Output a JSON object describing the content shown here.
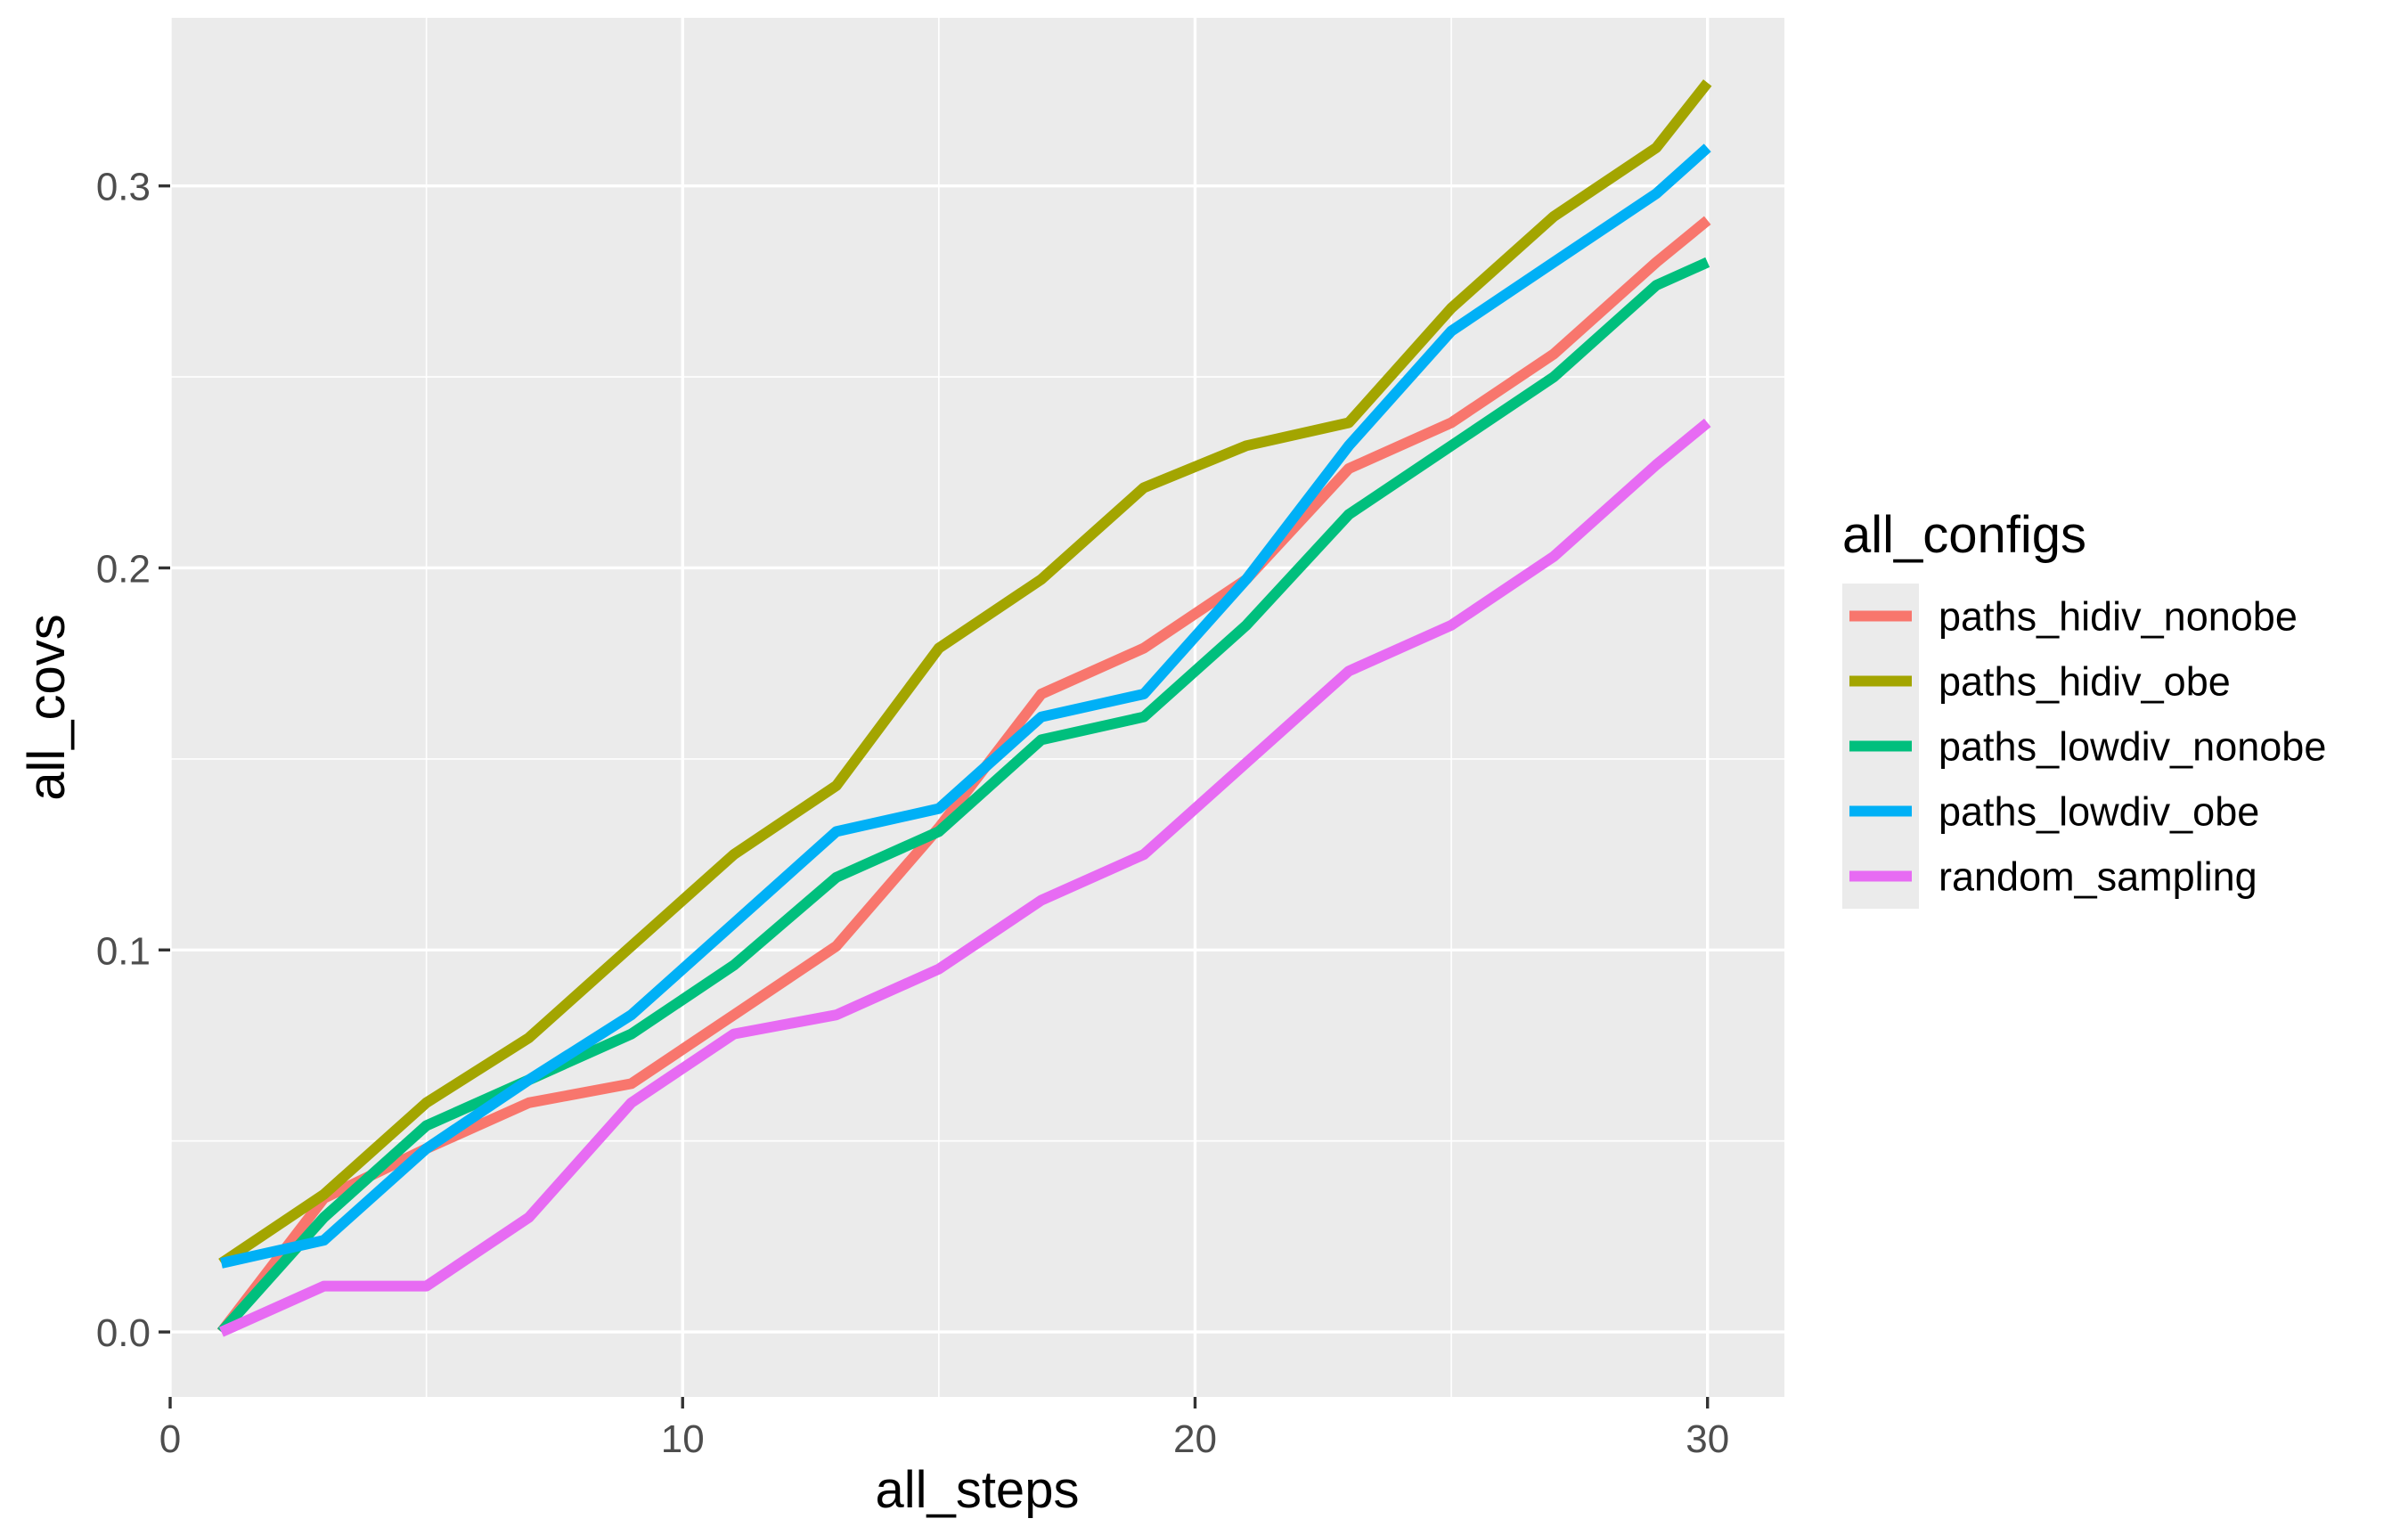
{
  "chart_data": {
    "type": "line",
    "title": "",
    "xlabel": "all_steps",
    "ylabel": "all_covs",
    "xlim": [
      0,
      31.5
    ],
    "ylim": [
      -0.017,
      0.344
    ],
    "x_ticks": [
      0,
      10,
      20,
      30
    ],
    "x_tick_labels": [
      "0",
      "10",
      "20",
      "30"
    ],
    "y_ticks": [
      0.0,
      0.1,
      0.2,
      0.3
    ],
    "y_tick_labels": [
      "0.0",
      "0.1",
      "0.2",
      "0.3"
    ],
    "grid": true,
    "background": "#ebebeb",
    "legend": {
      "title": "all_configs",
      "position": "right"
    },
    "x": [
      1,
      3,
      5,
      7,
      9,
      11,
      13,
      15,
      17,
      19,
      21,
      23,
      25,
      27,
      29,
      30
    ],
    "series": [
      {
        "name": "paths_hidiv_nonobe",
        "color": "#F8766D",
        "values": [
          0.0,
          0.035,
          0.048,
          0.06,
          0.065,
          0.083,
          0.101,
          0.132,
          0.167,
          0.179,
          0.197,
          0.226,
          0.238,
          0.256,
          0.28,
          0.291
        ]
      },
      {
        "name": "paths_hidiv_obe",
        "color": "#A3A500",
        "values": [
          0.018,
          0.036,
          0.06,
          0.077,
          0.101,
          0.125,
          0.143,
          0.179,
          0.197,
          0.221,
          0.232,
          0.238,
          0.268,
          0.292,
          0.31,
          0.327
        ]
      },
      {
        "name": "paths_lowdiv_nonobe",
        "color": "#00BF7D",
        "values": [
          0.0,
          0.03,
          0.054,
          0.066,
          0.078,
          0.096,
          0.119,
          0.131,
          0.155,
          0.161,
          0.185,
          0.214,
          0.232,
          0.25,
          0.274,
          0.28
        ]
      },
      {
        "name": "paths_lowdiv_obe",
        "color": "#00B0F6",
        "values": [
          0.018,
          0.024,
          0.048,
          0.066,
          0.083,
          0.107,
          0.131,
          0.137,
          0.161,
          0.167,
          0.197,
          0.232,
          0.262,
          0.28,
          0.298,
          0.31
        ]
      },
      {
        "name": "random_sampling",
        "color": "#E76BF3",
        "values": [
          0.0,
          0.012,
          0.012,
          0.03,
          0.06,
          0.078,
          0.083,
          0.095,
          0.113,
          0.125,
          0.149,
          0.173,
          0.185,
          0.203,
          0.227,
          0.238
        ]
      }
    ]
  }
}
